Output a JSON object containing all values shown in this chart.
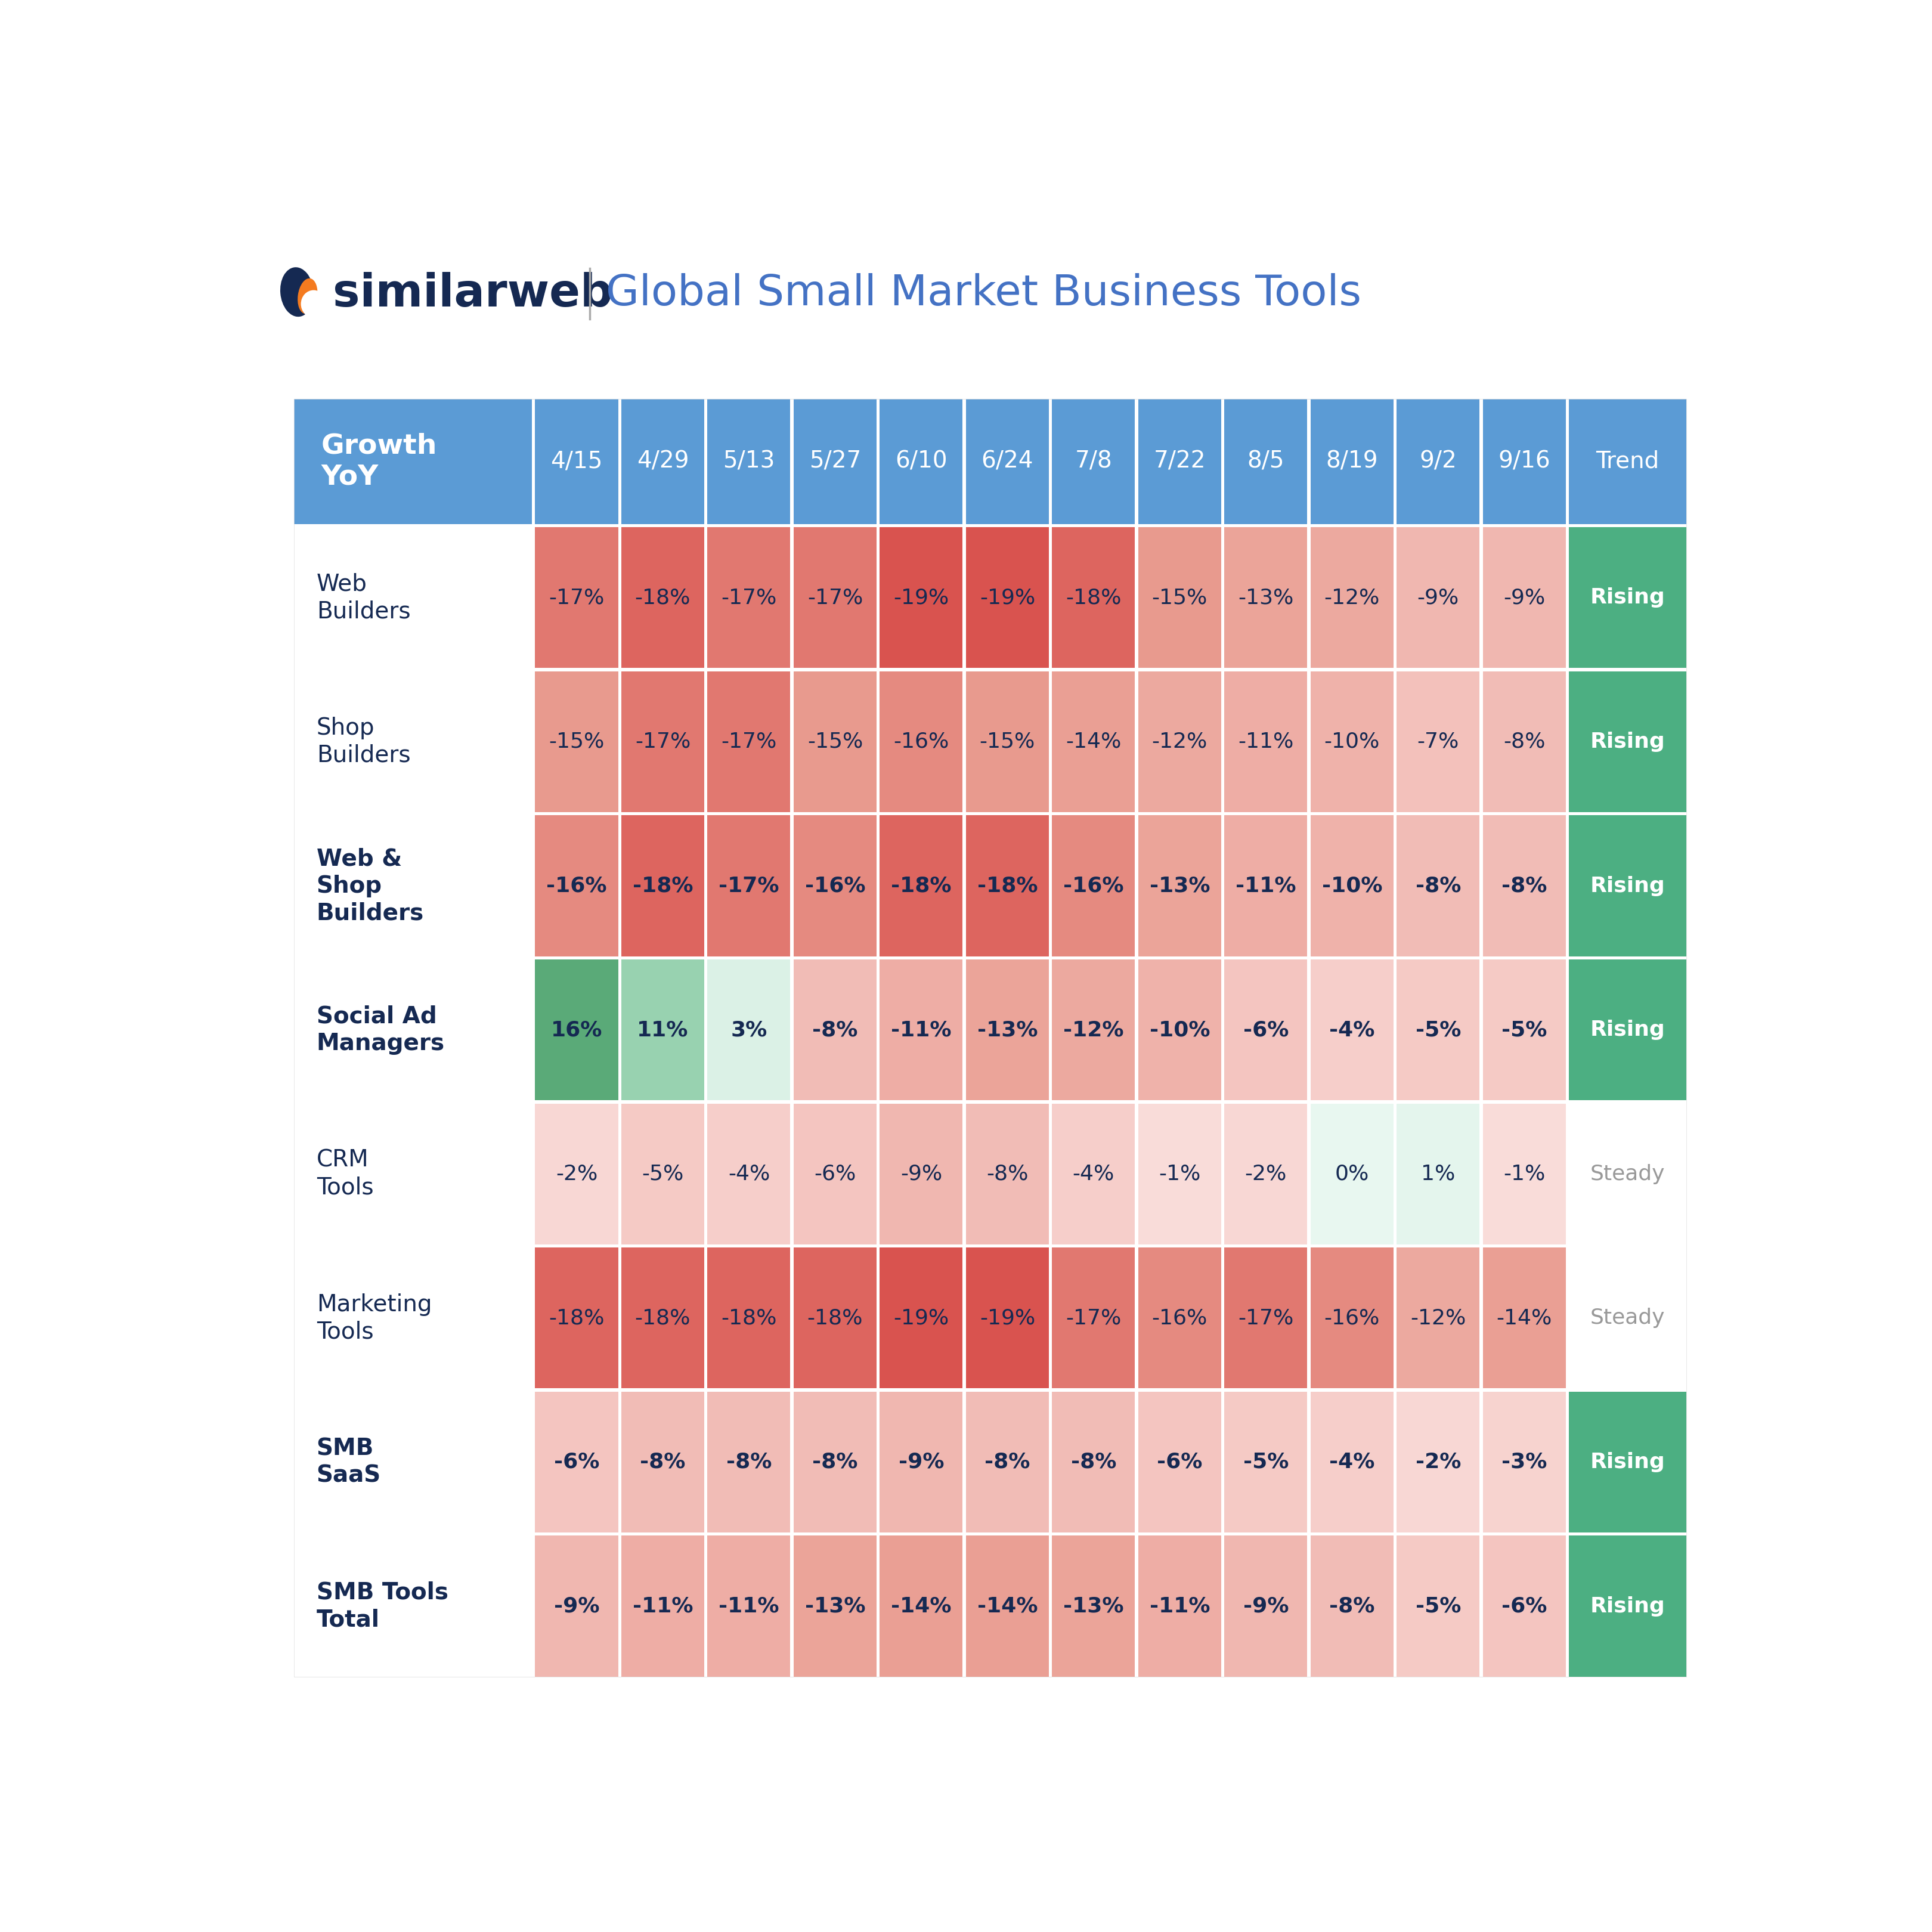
{
  "title": "Global Small Market Business Tools",
  "col_headers": [
    "Growth\nYoY",
    "4/15",
    "4/29",
    "5/13",
    "5/27",
    "6/10",
    "6/24",
    "7/8",
    "7/22",
    "8/5",
    "8/19",
    "9/2",
    "9/16",
    "Trend"
  ],
  "row_labels": [
    "Web\nBuilders",
    "Shop\nBuilders",
    "Web &\nShop\nBuilders",
    "Social Ad\nManagers",
    "CRM\nTools",
    "Marketing\nTools",
    "SMB\nSaaS",
    "SMB Tools\nTotal"
  ],
  "row_bold": [
    false,
    false,
    true,
    true,
    false,
    false,
    true,
    true
  ],
  "values": [
    [
      -17,
      -18,
      -17,
      -17,
      -19,
      -19,
      -18,
      -15,
      -13,
      -12,
      -9,
      -9
    ],
    [
      -15,
      -17,
      -17,
      -15,
      -16,
      -15,
      -14,
      -12,
      -11,
      -10,
      -7,
      -8
    ],
    [
      -16,
      -18,
      -17,
      -16,
      -18,
      -18,
      -16,
      -13,
      -11,
      -10,
      -8,
      -8
    ],
    [
      16,
      11,
      3,
      -8,
      -11,
      -13,
      -12,
      -10,
      -6,
      -4,
      -5,
      -5
    ],
    [
      -2,
      -5,
      -4,
      -6,
      -9,
      -8,
      -4,
      -1,
      -2,
      0,
      1,
      -1
    ],
    [
      -18,
      -18,
      -18,
      -18,
      -19,
      -19,
      -17,
      -16,
      -17,
      -16,
      -12,
      -14
    ],
    [
      -6,
      -8,
      -8,
      -8,
      -9,
      -8,
      -8,
      -6,
      -5,
      -4,
      -2,
      -3
    ],
    [
      -9,
      -11,
      -11,
      -13,
      -14,
      -14,
      -13,
      -11,
      -9,
      -8,
      -5,
      -6
    ]
  ],
  "trend_labels": [
    "Rising",
    "Rising",
    "Rising",
    "Rising",
    "Steady",
    "Steady",
    "Rising",
    "Rising"
  ],
  "trend_rising_color": "#4CAF82",
  "trend_steady_color": "#999999",
  "header_bg": "#5B9BD5",
  "header_text": "#FFFFFF",
  "background": "#FFFFFF",
  "row_label_text_color": "#152952",
  "cell_text_color": "#152952",
  "logo_orange": "#F47B20",
  "logo_navy": "#152952",
  "title_blue": "#4472C4",
  "separator_color": "#888888"
}
